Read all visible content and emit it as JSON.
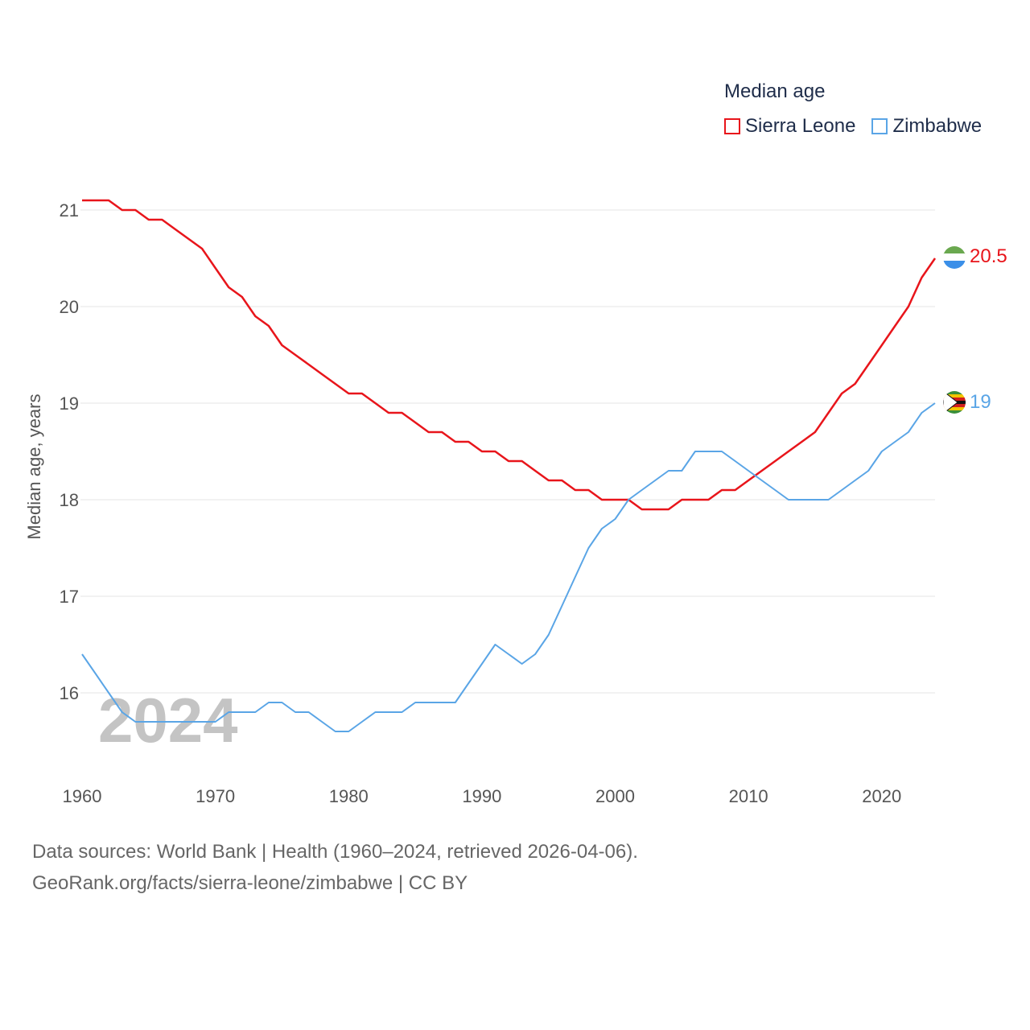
{
  "legend": {
    "title": "Median age",
    "items": [
      "Sierra Leone",
      "Zimbabwe"
    ]
  },
  "colors": {
    "sierra_leone": "#e8151b",
    "zimbabwe": "#5aa5e6",
    "grid": "#e6e6e6"
  },
  "watermark_year": "2024",
  "sources": {
    "line1": "Data sources: World Bank | Health (1960–2024, retrieved 2026-04-06).",
    "line2": "GeoRank.org/facts/sierra-leone/zimbabwe | CC BY"
  },
  "chart_data": {
    "type": "line",
    "title": "Median age",
    "xlabel": "",
    "ylabel": "Median age, years",
    "xlim": [
      1960,
      2024
    ],
    "ylim": [
      15.2,
      21.4
    ],
    "x_ticks": [
      1960,
      1970,
      1980,
      1990,
      2000,
      2010,
      2020
    ],
    "y_ticks": [
      16,
      17,
      18,
      19,
      20,
      21
    ],
    "x": [
      1960,
      1961,
      1962,
      1963,
      1964,
      1965,
      1966,
      1967,
      1968,
      1969,
      1970,
      1971,
      1972,
      1973,
      1974,
      1975,
      1976,
      1977,
      1978,
      1979,
      1980,
      1981,
      1982,
      1983,
      1984,
      1985,
      1986,
      1987,
      1988,
      1989,
      1990,
      1991,
      1992,
      1993,
      1994,
      1995,
      1996,
      1997,
      1998,
      1999,
      2000,
      2001,
      2002,
      2003,
      2004,
      2005,
      2006,
      2007,
      2008,
      2009,
      2010,
      2011,
      2012,
      2013,
      2014,
      2015,
      2016,
      2017,
      2018,
      2019,
      2020,
      2021,
      2022,
      2023,
      2024
    ],
    "series": [
      {
        "name": "Sierra Leone",
        "color": "#e8151b",
        "end_label": "20.5",
        "values": [
          21.1,
          21.1,
          21.1,
          21.0,
          21.0,
          20.9,
          20.9,
          20.8,
          20.7,
          20.6,
          20.4,
          20.2,
          20.1,
          19.9,
          19.8,
          19.6,
          19.5,
          19.4,
          19.3,
          19.2,
          19.1,
          19.1,
          19.0,
          18.9,
          18.9,
          18.8,
          18.7,
          18.7,
          18.6,
          18.6,
          18.5,
          18.5,
          18.4,
          18.4,
          18.3,
          18.2,
          18.2,
          18.1,
          18.1,
          18.0,
          18.0,
          18.0,
          17.9,
          17.9,
          17.9,
          18.0,
          18.0,
          18.0,
          18.1,
          18.1,
          18.2,
          18.3,
          18.4,
          18.5,
          18.6,
          18.7,
          18.9,
          19.1,
          19.2,
          19.4,
          19.6,
          19.8,
          20.0,
          20.3,
          20.5
        ]
      },
      {
        "name": "Zimbabwe",
        "color": "#5aa5e6",
        "end_label": "19",
        "values": [
          16.4,
          16.2,
          16.0,
          15.8,
          15.7,
          15.7,
          15.7,
          15.7,
          15.7,
          15.7,
          15.7,
          15.8,
          15.8,
          15.8,
          15.9,
          15.9,
          15.8,
          15.8,
          15.7,
          15.6,
          15.6,
          15.7,
          15.8,
          15.8,
          15.8,
          15.9,
          15.9,
          15.9,
          15.9,
          16.1,
          16.3,
          16.5,
          16.4,
          16.3,
          16.4,
          16.6,
          16.9,
          17.2,
          17.5,
          17.7,
          17.8,
          18.0,
          18.1,
          18.2,
          18.3,
          18.3,
          18.5,
          18.5,
          18.5,
          18.4,
          18.3,
          18.2,
          18.1,
          18.0,
          18.0,
          18.0,
          18.0,
          18.1,
          18.2,
          18.3,
          18.5,
          18.6,
          18.7,
          18.9,
          19.0
        ]
      }
    ]
  }
}
